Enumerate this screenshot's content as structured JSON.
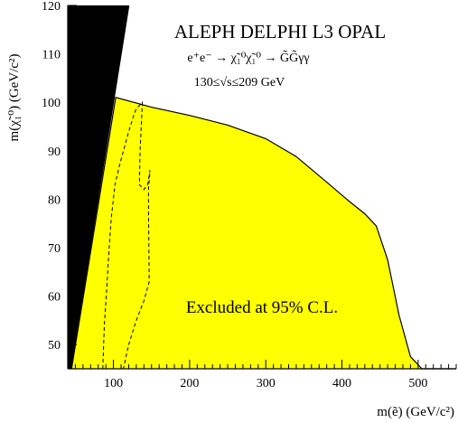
{
  "chart_data": {
    "type": "area",
    "title": "ALEPH DELPHI L3 OPAL",
    "subtitle_process": "e⁺e⁻ → χ̃₁⁰χ̃₁⁰ → G̃G̃γγ",
    "subtitle_energy": "130≤√s≤209 GeV",
    "xlabel": "m(ẽ) (GeV/c²)",
    "ylabel": "m(χ̃₁⁰) (GeV/c²)",
    "xlim": [
      40,
      550
    ],
    "ylim": [
      45,
      120
    ],
    "grid": false,
    "x_tick_labels": [
      "100",
      "200",
      "300",
      "400",
      "500"
    ],
    "y_tick_labels": [
      "50",
      "60",
      "70",
      "80",
      "90",
      "100",
      "110",
      "120"
    ],
    "annotation": "Excluded at 95% C.L.",
    "colors": {
      "excluded_fill": "#ffff00",
      "kinematic_region": "#000000"
    },
    "series": [
      {
        "role": "excluded-region-boundary",
        "points": [
          [
            45,
            45
          ],
          [
            103,
            101
          ],
          [
            150,
            99
          ],
          [
            200,
            97.3
          ],
          [
            250,
            95.3
          ],
          [
            300,
            92.5
          ],
          [
            340,
            88.8
          ],
          [
            380,
            83.5
          ],
          [
            410,
            79.5
          ],
          [
            430,
            77
          ],
          [
            445,
            74.5
          ],
          [
            460,
            67.5
          ],
          [
            475,
            56
          ],
          [
            490,
            47.5
          ],
          [
            505,
            45
          ],
          [
            550,
            45
          ]
        ]
      },
      {
        "role": "kinematically-forbidden-region",
        "points": [
          [
            40,
            45
          ],
          [
            45,
            45
          ],
          [
            121,
            120
          ],
          [
            40,
            120
          ]
        ]
      },
      {
        "role": "dashed-contour",
        "points": [
          [
            86,
            45
          ],
          [
            88,
            54
          ],
          [
            91,
            61
          ],
          [
            94,
            69
          ],
          [
            97,
            76
          ],
          [
            102,
            83
          ],
          [
            108,
            87
          ],
          [
            115,
            91
          ],
          [
            120,
            94
          ],
          [
            126,
            97
          ],
          [
            130,
            98.7
          ],
          [
            138,
            100
          ],
          [
            135,
            90
          ],
          [
            134,
            83
          ],
          [
            140,
            82
          ],
          [
            145,
            83
          ],
          [
            148,
            86
          ],
          [
            146,
            82
          ],
          [
            146,
            77
          ],
          [
            147,
            63
          ],
          [
            140,
            59
          ],
          [
            130,
            55
          ],
          [
            120,
            50
          ],
          [
            113,
            45
          ]
        ]
      }
    ]
  }
}
